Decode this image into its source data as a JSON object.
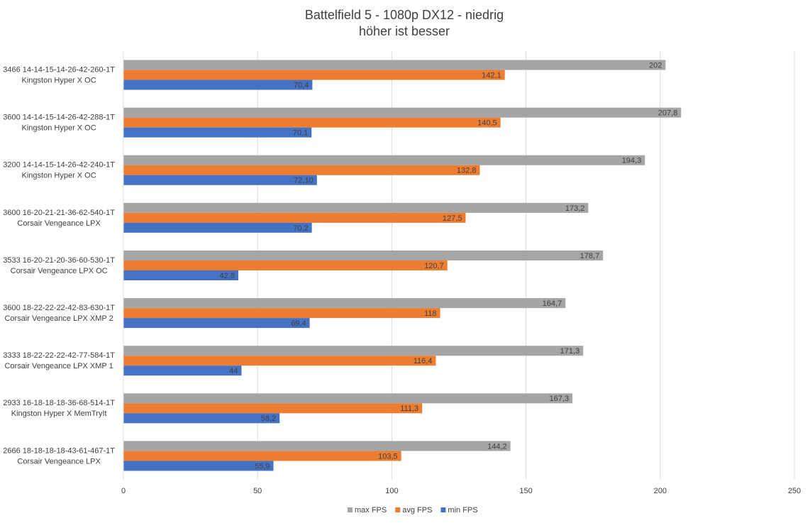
{
  "chart_data": {
    "type": "bar",
    "orientation": "horizontal",
    "title": "Battelfield 5 - 1080p DX12 - niedrig",
    "subtitle": "höher ist besser",
    "categories": [
      [
        "3466 14-14-15-14-26-42-260-1T",
        "Kingston Hyper X OC"
      ],
      [
        "3600 14-14-15-14-26-42-288-1T",
        "Kingston Hyper X OC"
      ],
      [
        "3200 14-14-15-14-26-42-240-1T",
        "Kingston Hyper X OC"
      ],
      [
        "3600 16-20-21-21-36-62-540-1T",
        "Corsair Vengeance LPX"
      ],
      [
        "3533 16-20-21-20-36-60-530-1T",
        "Corsair Vengeance LPX OC"
      ],
      [
        "3600 18-22-22-22-42-83-630-1T",
        "Corsair Vengeance LPX XMP 2"
      ],
      [
        "3333 18-22-22-22-42-77-584-1T",
        "Corsair Vengeance LPX XMP 1"
      ],
      [
        "2933 16-18-18-18-36-68-514-1T",
        "Kingston Hyper X MemTryIt"
      ],
      [
        "2666 18-18-18-18-43-61-467-1T",
        "Corsair Vengeance LPX"
      ]
    ],
    "series": [
      {
        "name": "max FPS",
        "color": "#a5a5a5",
        "values": [
          202,
          207.8,
          194.3,
          173.2,
          178.7,
          164.7,
          171.3,
          167.3,
          144.2
        ],
        "value_labels": [
          "202",
          "207,8",
          "194,3",
          "173,2",
          "178,7",
          "164,7",
          "171,3",
          "167,3",
          "144,2"
        ]
      },
      {
        "name": "avg FPS",
        "color": "#ed7d31",
        "values": [
          142.1,
          140.5,
          132.8,
          127.5,
          120.7,
          118,
          116.4,
          111.3,
          103.5
        ],
        "value_labels": [
          "142,1",
          "140,5",
          "132,8",
          "127,5",
          "120,7",
          "118",
          "116,4",
          "111,3",
          "103,5"
        ]
      },
      {
        "name": "min FPS",
        "color": "#4472c4",
        "values": [
          70.4,
          70.1,
          72.1,
          70.2,
          42.8,
          69.4,
          44,
          58.2,
          55.9
        ],
        "value_labels": [
          "70,4",
          "70,1",
          "72,10",
          "70,2",
          "42,8",
          "69,4",
          "44",
          "58,2",
          "55,9"
        ]
      }
    ],
    "xlim": [
      0,
      250
    ],
    "xticks": [
      0,
      50,
      100,
      150,
      200,
      250
    ],
    "grid": true,
    "legend": "bottom"
  }
}
